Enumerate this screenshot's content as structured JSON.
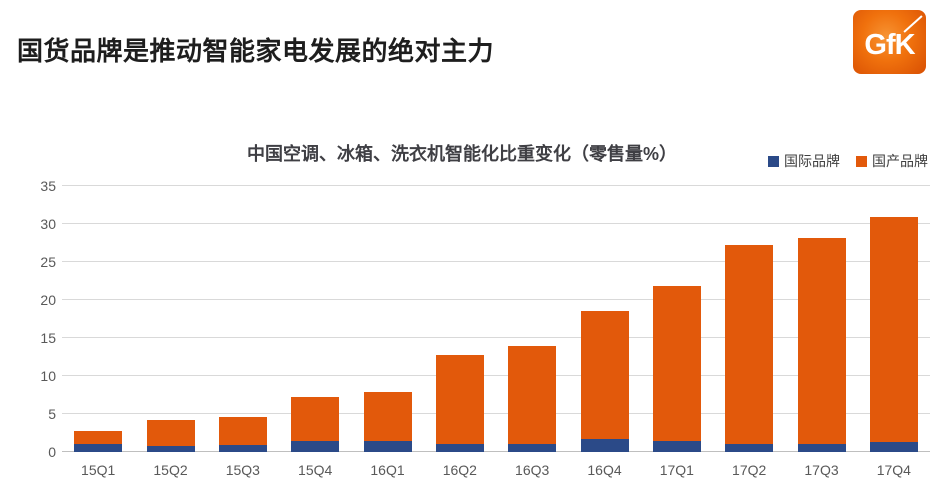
{
  "header": {
    "title": "国货品牌是推动智能家电发展的绝对主力",
    "logo_text": "GfK"
  },
  "chart_data": {
    "type": "bar",
    "stacked": true,
    "title": "中国空调、冰箱、洗衣机智能化比重变化（零售量%）",
    "categories": [
      "15Q1",
      "15Q2",
      "15Q3",
      "15Q4",
      "16Q1",
      "16Q2",
      "16Q3",
      "16Q4",
      "17Q1",
      "17Q2",
      "17Q3",
      "17Q4"
    ],
    "series": [
      {
        "name": "国际品牌",
        "color": "#2b4a88",
        "values": [
          1.1,
          0.8,
          0.9,
          1.5,
          1.4,
          1.0,
          1.1,
          1.7,
          1.4,
          1.1,
          1.0,
          1.3
        ]
      },
      {
        "name": "国产品牌",
        "color": "#e2590b",
        "values": [
          1.6,
          3.4,
          3.7,
          5.7,
          6.5,
          11.8,
          12.8,
          16.9,
          20.4,
          26.1,
          27.2,
          29.6
        ]
      }
    ],
    "totals": [
      2.7,
      4.2,
      4.6,
      7.2,
      7.9,
      12.8,
      13.9,
      18.6,
      21.8,
      27.2,
      28.2,
      30.9
    ],
    "ylim": [
      0,
      35
    ],
    "ytick_step": 5,
    "grid": true,
    "legend_position": "top-right",
    "xlabel": "",
    "ylabel": ""
  },
  "colors": {
    "title_text": "#1e1e1e",
    "chart_title_text": "#3f3f44",
    "axis_text": "#595959",
    "gridline": "#d9d9d9",
    "logo_orange": "#f0710d",
    "background": "#ffffff"
  }
}
